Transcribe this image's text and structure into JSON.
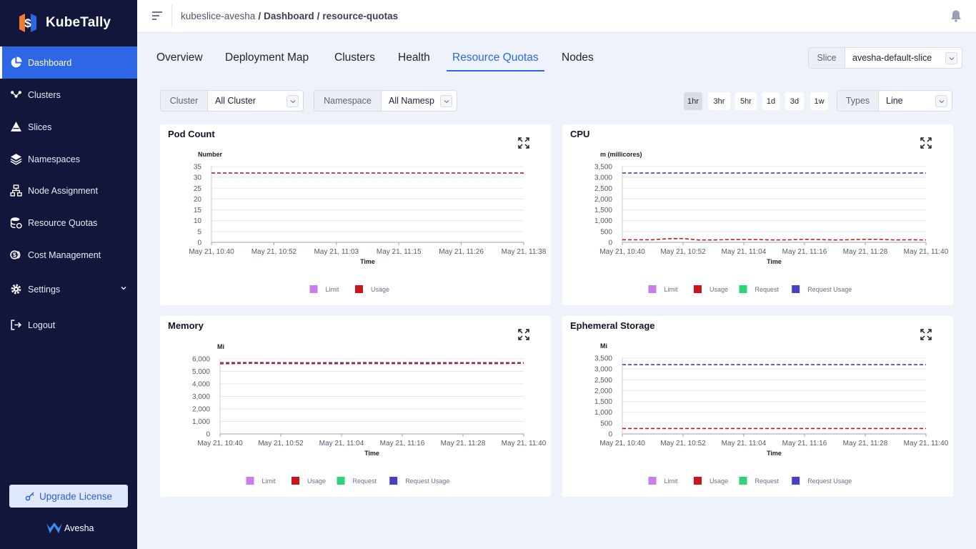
{
  "app": {
    "name": "KubeTally",
    "footer_brand": "Avesha",
    "upgrade_label": "Upgrade License"
  },
  "sidebar": {
    "items": [
      {
        "label": "Dashboard",
        "icon": "pie-chart-icon",
        "active": true
      },
      {
        "label": "Clusters",
        "icon": "cluster-nodes-icon"
      },
      {
        "label": "Slices",
        "icon": "slices-icon"
      },
      {
        "label": "Namespaces",
        "icon": "layers-icon"
      },
      {
        "label": "Node Assignment",
        "icon": "hierarchy-icon"
      },
      {
        "label": "Resource Quotas",
        "icon": "database-gear-icon"
      },
      {
        "label": "Cost Management",
        "icon": "coins-icon"
      },
      {
        "label": "Settings",
        "icon": "gear-icon"
      },
      {
        "label": "Logout",
        "icon": "logout-icon"
      }
    ]
  },
  "header": {
    "breadcrumb": [
      "kubeslice-avesha",
      "Dashboard",
      "resource-quotas"
    ]
  },
  "tabs": [
    "Overview",
    "Deployment Map",
    "Clusters",
    "Health",
    "Resource Quotas",
    "Nodes"
  ],
  "filters": {
    "slice": {
      "label": "Slice",
      "value": "avesha-default-slice"
    },
    "cluster": {
      "label": "Cluster",
      "value": "All Cluster"
    },
    "namespace": {
      "label": "Namespace",
      "value": "All Namesp"
    },
    "types": {
      "label": "Types",
      "value": "Line"
    },
    "ranges": [
      "1hr",
      "3hr",
      "5hr",
      "1d",
      "3d",
      "1w"
    ],
    "active_range": "1hr"
  },
  "colors": {
    "accent": "#2d67e6",
    "sidebar": "#12163b",
    "limit": "#c77ee8",
    "usage": "#c8161e",
    "request": "#2ed47a",
    "request_usage": "#4a3fc2"
  },
  "chart_data": [
    {
      "type": "line",
      "title": "Pod Count",
      "ylabel": "Number",
      "xlabel": "Time",
      "ylim": [
        0,
        35
      ],
      "y_ticks": [
        "0",
        "5",
        "10",
        "15",
        "20",
        "25",
        "30",
        "35"
      ],
      "x_ticks": [
        "May 21, 10:40",
        "May 21, 10:52",
        "May 21, 11:03",
        "May 21, 11:15",
        "May 21, 11:26",
        "May 21, 11:38"
      ],
      "legend": [
        "Limit",
        "Usage"
      ],
      "series": [
        {
          "name": "Usage",
          "values": [
            32,
            32,
            32,
            32,
            32,
            32
          ]
        }
      ]
    },
    {
      "type": "line",
      "title": "CPU",
      "ylabel": "m (millicores)",
      "xlabel": "Time",
      "ylim": [
        0,
        3500
      ],
      "y_ticks": [
        "0",
        "500",
        "1,000",
        "1,500",
        "2,000",
        "2,500",
        "3,000",
        "3,500"
      ],
      "x_ticks": [
        "May 21, 10:40",
        "May 21, 10:52",
        "May 21, 11:04",
        "May 21, 11:16",
        "May 21, 11:28",
        "May 21, 11:40"
      ],
      "legend": [
        "Limit",
        "Usage",
        "Request",
        "Request Usage"
      ],
      "series": [
        {
          "name": "Request Usage",
          "values": [
            3200,
            3200,
            3200,
            3200,
            3200,
            3200,
            3200,
            3200,
            3200,
            3200,
            3200,
            3200,
            3200,
            3200,
            3200,
            3200,
            3200,
            3200,
            3200,
            3200,
            3200
          ]
        },
        {
          "name": "Usage",
          "values": [
            120,
            115,
            120,
            170,
            175,
            110,
            110,
            125,
            130,
            125,
            110,
            115,
            140,
            125,
            110,
            120,
            140,
            135,
            110,
            120,
            110
          ]
        }
      ]
    },
    {
      "type": "line",
      "title": "Memory",
      "ylabel": "Mi",
      "xlabel": "Time",
      "ylim": [
        0,
        6000
      ],
      "y_ticks": [
        "0",
        "1,000",
        "2,000",
        "3,000",
        "4,000",
        "5,000",
        "6,000"
      ],
      "x_ticks": [
        "May 21, 10:40",
        "May 21, 10:52",
        "May 21, 11:04",
        "May 21, 11:16",
        "May 21, 11:28",
        "May 21, 11:40"
      ],
      "legend": [
        "Limit",
        "Usage",
        "Request",
        "Request Usage"
      ],
      "series": [
        {
          "name": "Request Usage",
          "values": [
            5700,
            5710,
            5700,
            5690,
            5700,
            5705,
            5700,
            5700,
            5695,
            5700,
            5700
          ]
        },
        {
          "name": "Usage",
          "values": [
            5600,
            5650,
            5630,
            5620,
            5610,
            5630,
            5620,
            5610,
            5640,
            5620,
            5650
          ]
        }
      ]
    },
    {
      "type": "line",
      "title": "Ephemeral Storage",
      "ylabel": "Mi",
      "xlabel": "Time",
      "ylim": [
        0,
        3500
      ],
      "y_ticks": [
        "0",
        "500",
        "1,000",
        "1,500",
        "2,000",
        "2,500",
        "3,000",
        "3,500"
      ],
      "x_ticks": [
        "May 21, 10:40",
        "May 21, 10:52",
        "May 21, 11:04",
        "May 21, 11:16",
        "May 21, 11:28",
        "May 21, 11:40"
      ],
      "legend": [
        "Limit",
        "Usage",
        "Request",
        "Request Usage"
      ],
      "series": [
        {
          "name": "Request Usage",
          "values": [
            3200,
            3200,
            3200,
            3200,
            3200,
            3200
          ]
        },
        {
          "name": "Usage",
          "values": [
            250,
            250,
            250,
            250,
            250,
            250
          ]
        }
      ]
    }
  ]
}
